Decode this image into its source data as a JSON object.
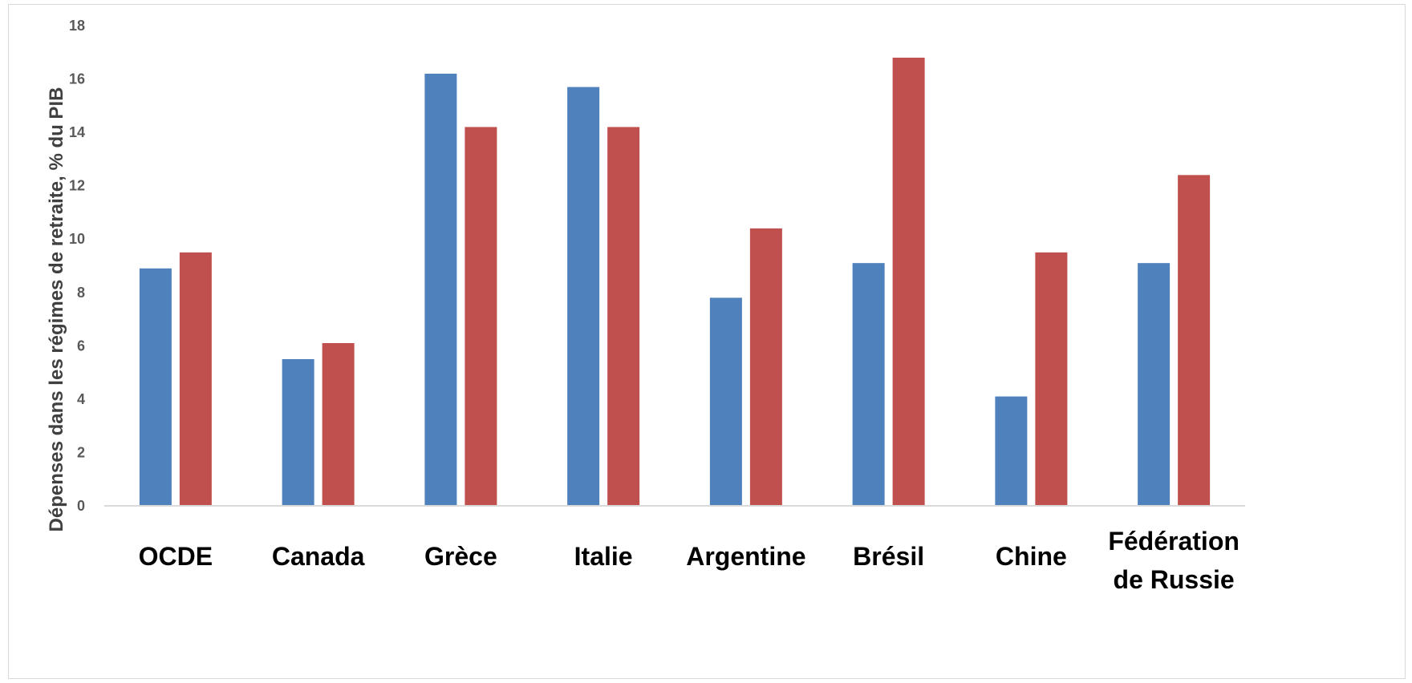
{
  "chart_data": {
    "type": "bar",
    "title": "",
    "xlabel": "",
    "ylabel": "Dépenses dans les régimes de retraite, % du PIB",
    "ylim": [
      0,
      18
    ],
    "yticks": [
      0,
      2,
      4,
      6,
      8,
      10,
      12,
      14,
      16,
      18
    ],
    "grid": false,
    "legend": "none",
    "categories": [
      [
        "OCDE"
      ],
      [
        "Canada"
      ],
      [
        "Grèce"
      ],
      [
        "Italie"
      ],
      [
        "Argentine"
      ],
      [
        "Brésil"
      ],
      [
        "Chine"
      ],
      [
        "Fédération",
        "de Russie"
      ]
    ],
    "series": [
      {
        "color": "#4f81bd",
        "values": [
          8.9,
          5.5,
          16.2,
          15.7,
          7.8,
          9.1,
          4.1,
          9.1
        ]
      },
      {
        "color": "#c0504d",
        "values": [
          9.5,
          6.1,
          14.2,
          14.2,
          10.4,
          16.8,
          9.5,
          12.4
        ]
      }
    ],
    "axis_color": "#d9d9d9"
  }
}
